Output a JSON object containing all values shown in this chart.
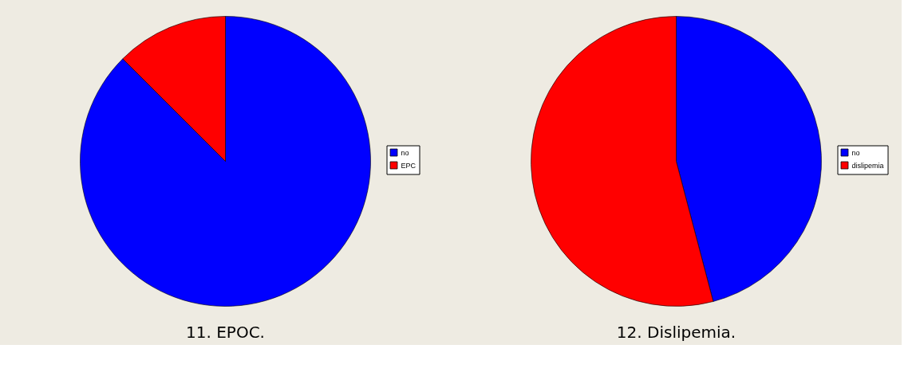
{
  "chart_data": [
    {
      "type": "pie",
      "title": "11. EPOC.",
      "categories": [
        "no",
        "EPC"
      ],
      "values": [
        87.5,
        12.5
      ],
      "colors": [
        "#0000ff",
        "#ff0000"
      ],
      "legend": "right"
    },
    {
      "type": "pie",
      "title": "12. Dislipemia.",
      "categories": [
        "no",
        "dislipemia"
      ],
      "values": [
        45.9,
        54.1
      ],
      "colors": [
        "#0000ff",
        "#ff0000"
      ],
      "legend": "right"
    }
  ]
}
